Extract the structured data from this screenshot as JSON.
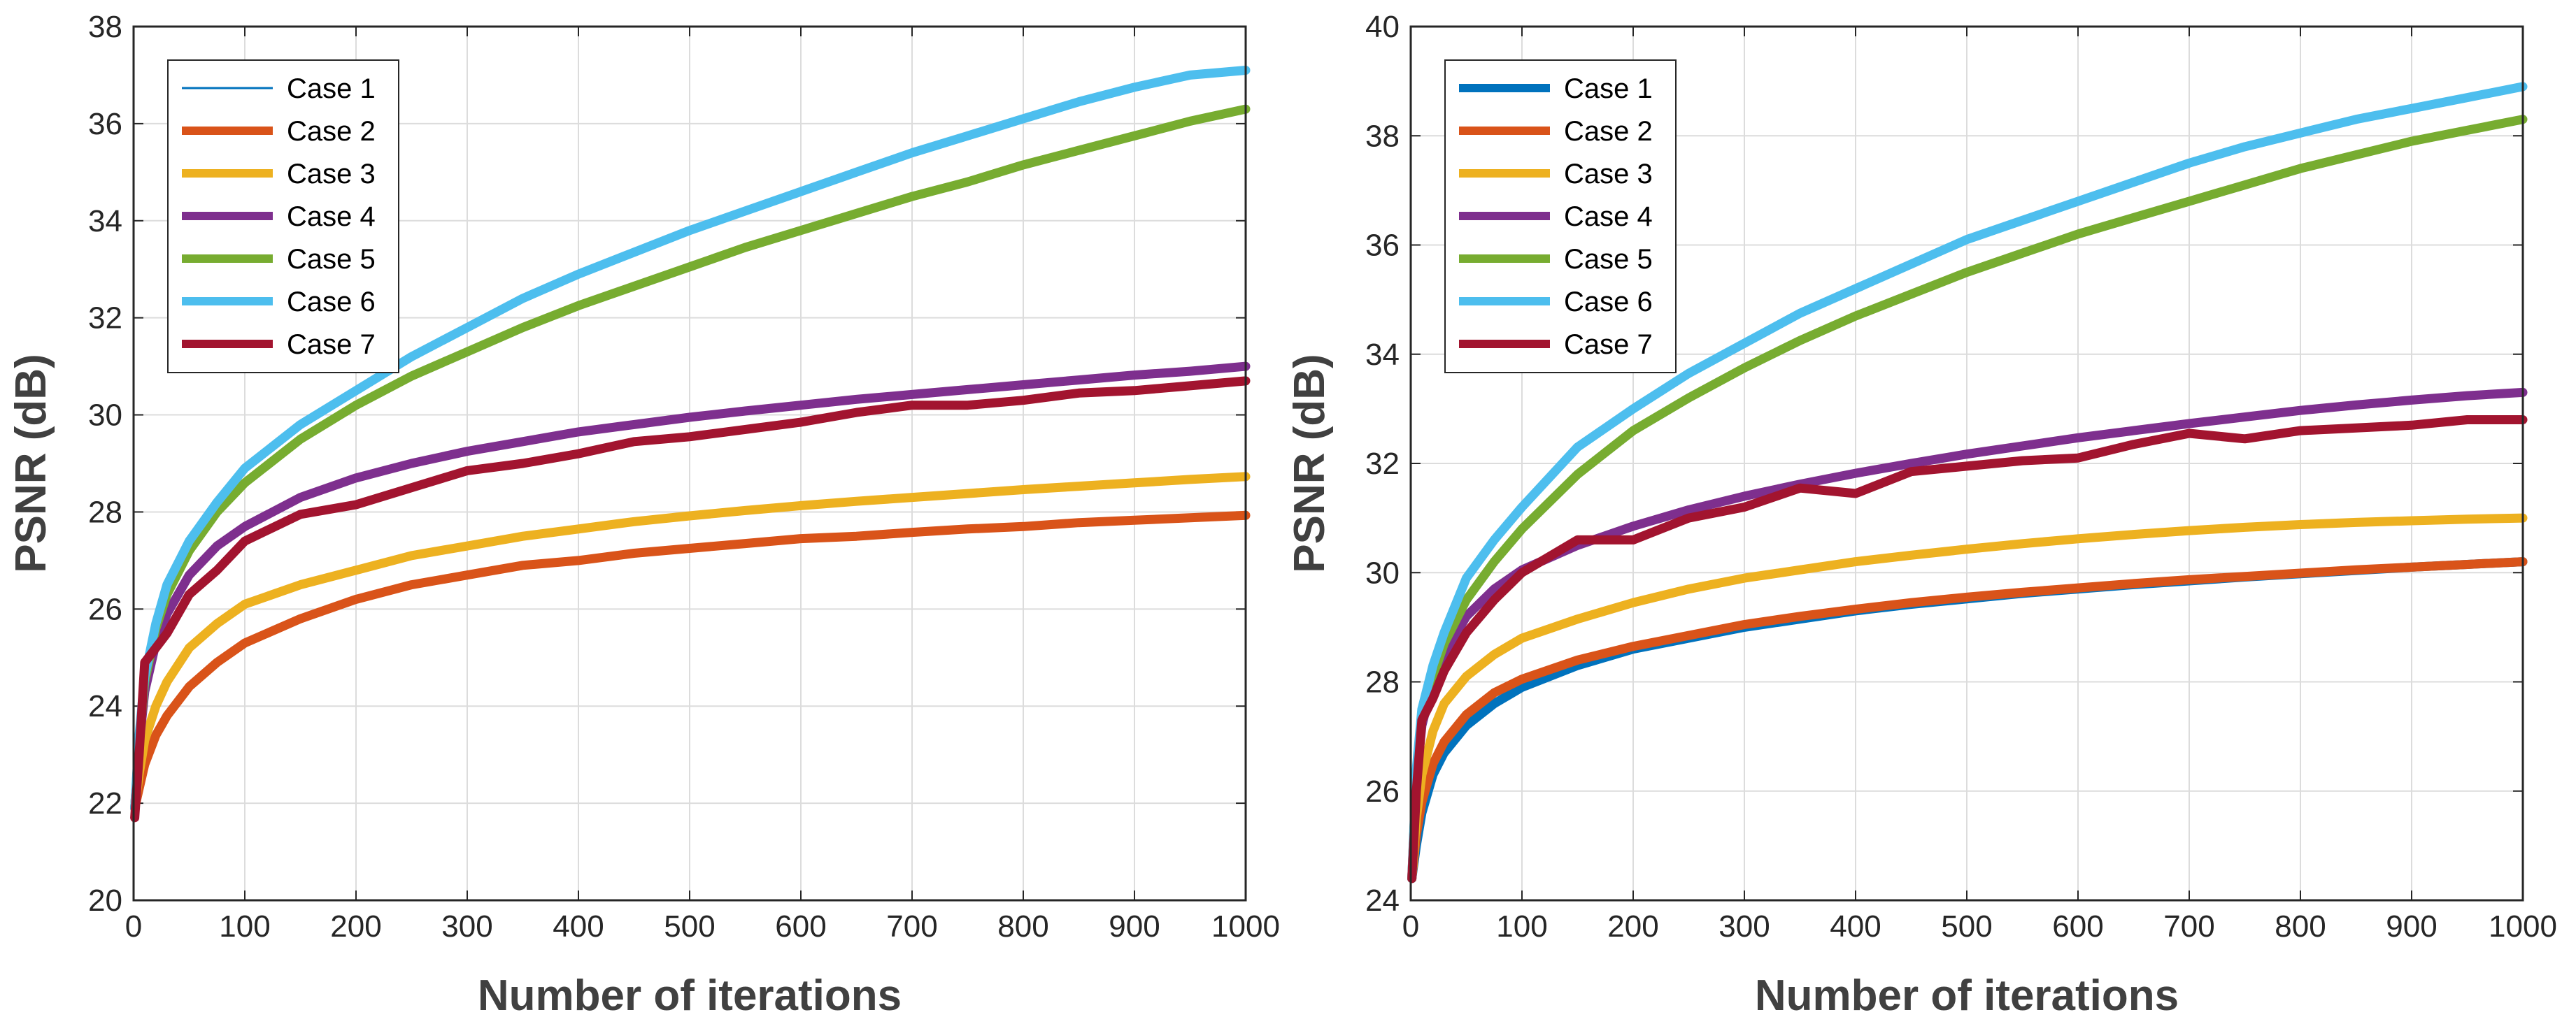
{
  "chart_data": [
    {
      "type": "line",
      "xlabel": "Number of iterations",
      "ylabel": "PSNR (dB)",
      "xlim": [
        0,
        1000
      ],
      "ylim": [
        20,
        38
      ],
      "xticks": [
        0,
        100,
        200,
        300,
        400,
        500,
        600,
        700,
        800,
        900,
        1000
      ],
      "yticks": [
        20,
        22,
        24,
        26,
        28,
        30,
        32,
        34,
        36,
        38
      ],
      "grid": true,
      "legend_position": "top-left",
      "x": [
        1,
        5,
        10,
        20,
        30,
        50,
        75,
        100,
        150,
        200,
        250,
        300,
        350,
        400,
        450,
        500,
        550,
        600,
        650,
        700,
        750,
        800,
        850,
        900,
        950,
        1000
      ],
      "series": [
        {
          "name": "Case 1",
          "color": "#0072BD",
          "width": "thin",
          "values": [
            21.9,
            22.3,
            22.8,
            23.4,
            23.8,
            24.4,
            24.9,
            25.3,
            25.8,
            26.2,
            26.5,
            26.7,
            26.9,
            27.0,
            27.15,
            27.25,
            27.35,
            27.45,
            27.5,
            27.58,
            27.65,
            27.7,
            27.78,
            27.83,
            27.88,
            27.93
          ]
        },
        {
          "name": "Case 2",
          "color": "#D95319",
          "width": "thick",
          "values": [
            21.9,
            22.3,
            22.8,
            23.4,
            23.8,
            24.4,
            24.9,
            25.3,
            25.8,
            26.2,
            26.5,
            26.7,
            26.9,
            27.0,
            27.15,
            27.25,
            27.35,
            27.45,
            27.5,
            27.58,
            27.65,
            27.7,
            27.78,
            27.83,
            27.88,
            27.93
          ]
        },
        {
          "name": "Case 3",
          "color": "#EDB120",
          "width": "thick",
          "values": [
            21.9,
            22.6,
            23.3,
            24.0,
            24.5,
            25.2,
            25.7,
            26.1,
            26.5,
            26.8,
            27.1,
            27.3,
            27.5,
            27.65,
            27.8,
            27.92,
            28.03,
            28.13,
            28.22,
            28.3,
            28.38,
            28.46,
            28.53,
            28.6,
            28.67,
            28.73
          ]
        },
        {
          "name": "Case 4",
          "color": "#7E2F8E",
          "width": "thick",
          "values": [
            21.9,
            23.2,
            24.3,
            25.3,
            25.9,
            26.7,
            27.3,
            27.7,
            28.3,
            28.7,
            29.0,
            29.25,
            29.45,
            29.65,
            29.8,
            29.95,
            30.08,
            30.2,
            30.32,
            30.42,
            30.52,
            30.62,
            30.72,
            30.82,
            30.9,
            31.0
          ]
        },
        {
          "name": "Case 5",
          "color": "#77AC30",
          "width": "thick",
          "values": [
            21.9,
            23.3,
            24.5,
            25.6,
            26.3,
            27.2,
            28.0,
            28.6,
            29.5,
            30.2,
            30.8,
            31.3,
            31.8,
            32.25,
            32.65,
            33.05,
            33.45,
            33.8,
            34.15,
            34.5,
            34.8,
            35.15,
            35.45,
            35.75,
            36.05,
            36.3
          ]
        },
        {
          "name": "Case 6",
          "color": "#4DBEEE",
          "width": "thick",
          "values": [
            21.9,
            23.4,
            24.6,
            25.7,
            26.5,
            27.4,
            28.2,
            28.9,
            29.8,
            30.5,
            31.2,
            31.8,
            32.4,
            32.9,
            33.35,
            33.8,
            34.2,
            34.6,
            35.0,
            35.4,
            35.75,
            36.1,
            36.45,
            36.75,
            37.0,
            37.1
          ]
        },
        {
          "name": "Case 7",
          "color": "#A2142F",
          "width": "thick",
          "values": [
            21.7,
            23.0,
            24.9,
            25.2,
            25.5,
            26.3,
            26.8,
            27.4,
            27.95,
            28.15,
            28.5,
            28.85,
            29.0,
            29.2,
            29.45,
            29.55,
            29.7,
            29.85,
            30.05,
            30.2,
            30.2,
            30.3,
            30.45,
            30.5,
            30.6,
            30.7
          ]
        }
      ]
    },
    {
      "type": "line",
      "xlabel": "Number of iterations",
      "ylabel": "PSNR (dB)",
      "xlim": [
        0,
        1000
      ],
      "ylim": [
        24,
        40
      ],
      "xticks": [
        0,
        100,
        200,
        300,
        400,
        500,
        600,
        700,
        800,
        900,
        1000
      ],
      "yticks": [
        24,
        26,
        28,
        30,
        32,
        34,
        36,
        38,
        40
      ],
      "grid": true,
      "legend_position": "top-left",
      "x": [
        1,
        5,
        10,
        20,
        30,
        50,
        75,
        100,
        150,
        200,
        250,
        300,
        350,
        400,
        450,
        500,
        550,
        600,
        650,
        700,
        750,
        800,
        850,
        900,
        950,
        1000
      ],
      "series": [
        {
          "name": "Case 1",
          "color": "#0072BD",
          "width": "thick",
          "values": [
            24.4,
            25.0,
            25.6,
            26.3,
            26.7,
            27.2,
            27.6,
            27.9,
            28.3,
            28.6,
            28.8,
            29.0,
            29.15,
            29.3,
            29.42,
            29.52,
            29.62,
            29.7,
            29.78,
            29.85,
            29.92,
            29.98,
            30.04,
            30.1,
            30.15,
            30.2
          ]
        },
        {
          "name": "Case 2",
          "color": "#D95319",
          "width": "thick",
          "values": [
            24.4,
            25.2,
            25.8,
            26.5,
            26.9,
            27.4,
            27.8,
            28.05,
            28.4,
            28.65,
            28.85,
            29.05,
            29.2,
            29.33,
            29.45,
            29.55,
            29.64,
            29.72,
            29.8,
            29.87,
            29.93,
            29.99,
            30.05,
            30.1,
            30.15,
            30.2
          ]
        },
        {
          "name": "Case 3",
          "color": "#EDB120",
          "width": "thick",
          "values": [
            24.4,
            25.5,
            26.3,
            27.1,
            27.6,
            28.1,
            28.5,
            28.8,
            29.15,
            29.45,
            29.7,
            29.9,
            30.05,
            30.2,
            30.32,
            30.43,
            30.53,
            30.62,
            30.7,
            30.77,
            30.83,
            30.88,
            30.92,
            30.95,
            30.98,
            31.0
          ]
        },
        {
          "name": "Case 4",
          "color": "#7E2F8E",
          "width": "thick",
          "values": [
            24.4,
            26.2,
            27.2,
            28.0,
            28.5,
            29.2,
            29.7,
            30.05,
            30.5,
            30.85,
            31.15,
            31.4,
            31.62,
            31.82,
            32.0,
            32.17,
            32.32,
            32.47,
            32.6,
            32.73,
            32.85,
            32.97,
            33.07,
            33.16,
            33.24,
            33.3
          ]
        },
        {
          "name": "Case 5",
          "color": "#77AC30",
          "width": "thick",
          "values": [
            24.4,
            26.3,
            27.3,
            28.1,
            28.7,
            29.5,
            30.2,
            30.8,
            31.8,
            32.6,
            33.2,
            33.75,
            34.25,
            34.7,
            35.1,
            35.5,
            35.85,
            36.2,
            36.5,
            36.8,
            37.1,
            37.4,
            37.65,
            37.9,
            38.1,
            38.3
          ]
        },
        {
          "name": "Case 6",
          "color": "#4DBEEE",
          "width": "thick",
          "values": [
            24.4,
            26.4,
            27.5,
            28.3,
            28.9,
            29.9,
            30.6,
            31.2,
            32.3,
            33.0,
            33.65,
            34.2,
            34.75,
            35.2,
            35.65,
            36.1,
            36.45,
            36.8,
            37.15,
            37.5,
            37.8,
            38.05,
            38.3,
            38.5,
            38.7,
            38.9
          ]
        },
        {
          "name": "Case 7",
          "color": "#A2142F",
          "width": "thick",
          "values": [
            24.4,
            26.0,
            27.3,
            27.7,
            28.2,
            28.9,
            29.5,
            30.0,
            30.6,
            30.6,
            31.0,
            31.2,
            31.55,
            31.45,
            31.85,
            31.95,
            32.05,
            32.1,
            32.35,
            32.55,
            32.45,
            32.6,
            32.65,
            32.7,
            32.8,
            32.8
          ]
        }
      ]
    }
  ]
}
